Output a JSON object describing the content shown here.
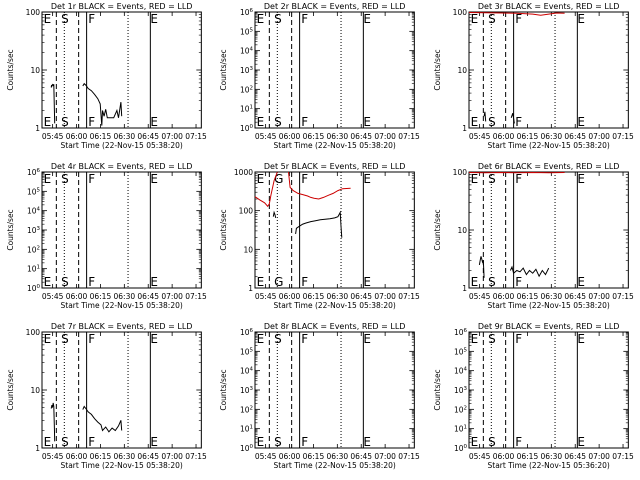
{
  "chart_data": [
    {
      "type": "line",
      "title": "Det 1r BLACK = Events, RED = LLD",
      "xlabel": "Start Time (22-Nov-15 05:38:20)",
      "ylabel": "Counts/sec",
      "yscale": "log",
      "ylim": [
        1,
        100
      ],
      "yticks": [
        "1",
        "10",
        "100"
      ],
      "xticks": [
        "05:45",
        "06:00",
        "06:15",
        "06:30",
        "06:45",
        "07:00",
        "07:15"
      ],
      "markers": [
        "E",
        "S",
        "F",
        "E"
      ],
      "series": [
        {
          "color": "#000000",
          "points": [
            [
              5.8,
              5
            ],
            [
              6.0,
              5.5
            ],
            [
              6.2,
              5.3
            ],
            [
              6.5,
              5.6
            ],
            [
              7.0,
              5.4
            ],
            [
              7.4,
              5.7
            ],
            [
              7.8,
              2
            ],
            [
              8.0,
              1.2
            ]
          ]
        },
        {
          "color": "#000000",
          "points": [
            [
              25.6,
              5.3
            ],
            [
              26.5,
              5.8
            ],
            [
              27.5,
              5.5
            ],
            [
              29.0,
              4.8
            ],
            [
              31.0,
              4.4
            ],
            [
              33.0,
              3.8
            ],
            [
              35.0,
              3.2
            ],
            [
              36.5,
              2.6
            ],
            [
              37.5,
              1.1
            ],
            [
              38.0,
              2.0
            ],
            [
              39.0,
              1.6
            ],
            [
              40.0,
              2.1
            ],
            [
              41.0,
              1.5
            ],
            [
              43.0,
              1.5
            ],
            [
              45.0,
              1.5
            ],
            [
              47.0,
              2.0
            ],
            [
              48.0,
              1.5
            ],
            [
              49.5,
              2.8
            ],
            [
              50.0,
              1.6
            ]
          ]
        }
      ]
    },
    {
      "type": "line",
      "title": "Det 2r BLACK = Events, RED = LLD",
      "xlabel": "Start Time (22-Nov-15 05:38:20)",
      "ylabel": "Counts/sec",
      "yscale": "log",
      "ylim": [
        1,
        1000000
      ],
      "yticks": [
        "10^0",
        "10^1",
        "10^2",
        "10^3",
        "10^4",
        "10^5",
        "10^6"
      ],
      "xticks": [
        "05:45",
        "06:00",
        "06:15",
        "06:30",
        "06:45",
        "07:00",
        "07:15"
      ],
      "markers": [
        "E",
        "S",
        "F",
        "E"
      ],
      "series": []
    },
    {
      "type": "line",
      "title": "Det 3r BLACK = Events, RED = LLD",
      "xlabel": "Start Time (22-Nov-15 05:38:20)",
      "ylabel": "Counts/sec",
      "yscale": "log",
      "ylim": [
        1,
        100
      ],
      "yticks": [
        "1",
        "10",
        "100"
      ],
      "xticks": [
        "05:45",
        "06:00",
        "06:15",
        "06:30",
        "06:45",
        "07:00",
        "07:15"
      ],
      "markers": [
        "E",
        "S",
        "F",
        "E"
      ],
      "series": [
        {
          "color": "#cc0000",
          "points": [
            [
              0,
              98
            ],
            [
              10,
              97
            ],
            [
              20,
              96
            ],
            [
              30,
              95
            ],
            [
              40,
              92
            ],
            [
              45,
              88
            ],
            [
              50,
              92
            ],
            [
              55,
              96
            ],
            [
              60,
              95
            ]
          ]
        },
        {
          "color": "#000000",
          "points": [
            [
              9.5,
              1.6
            ],
            [
              10.0,
              1.9
            ],
            [
              10.5,
              1.3
            ]
          ]
        },
        {
          "color": "#000000",
          "points": [
            [
              26.5,
              1.5
            ],
            [
              27.5,
              1.8
            ],
            [
              28.5,
              1.2
            ]
          ]
        }
      ]
    },
    {
      "type": "line",
      "title": "Det 4r BLACK = Events, RED = LLD",
      "xlabel": "Start Time (22-Nov-15 05:38:20)",
      "ylabel": "Counts/sec",
      "yscale": "log",
      "ylim": [
        1,
        1000000
      ],
      "yticks": [
        "10^0",
        "10^1",
        "10^2",
        "10^3",
        "10^4",
        "10^5",
        "10^6"
      ],
      "xticks": [
        "05:45",
        "06:00",
        "06:15",
        "06:30",
        "06:45",
        "07:00",
        "07:15"
      ],
      "markers": [
        "E",
        "S",
        "F",
        "E"
      ],
      "series": []
    },
    {
      "type": "line",
      "title": "Det 5r BLACK = Events, RED = LLD",
      "xlabel": "Start Time (22-Nov-15 05:38:20)",
      "ylabel": "Counts/sec",
      "yscale": "log",
      "ylim": [
        1,
        1000
      ],
      "yticks": [
        "1",
        "10",
        "100",
        "1000"
      ],
      "xticks": [
        "05:45",
        "06:00",
        "06:15",
        "06:30",
        "06:45",
        "07:00",
        "07:15"
      ],
      "markers": [
        "E",
        "G",
        "F",
        "E"
      ],
      "series": [
        {
          "color": "#cc0000",
          "points": [
            [
              0,
              230
            ],
            [
              3,
              190
            ],
            [
              6,
              160
            ],
            [
              8,
              130
            ],
            [
              9,
              150
            ],
            [
              10,
              250
            ],
            [
              12,
              600
            ],
            [
              14,
              1000
            ]
          ]
        },
        {
          "color": "#cc0000",
          "points": [
            [
              21,
              1000
            ],
            [
              22,
              400
            ],
            [
              24,
              330
            ],
            [
              27,
              280
            ],
            [
              30,
              260
            ],
            [
              33,
              240
            ],
            [
              35,
              220
            ],
            [
              37,
              210
            ],
            [
              40,
              200
            ],
            [
              43,
              220
            ],
            [
              46,
              250
            ],
            [
              49,
              280
            ],
            [
              52,
              330
            ],
            [
              55,
              370
            ],
            [
              60,
              380
            ]
          ]
        },
        {
          "color": "#000000",
          "points": [
            [
              11.5,
              70
            ],
            [
              12,
              90
            ],
            [
              12.5,
              80
            ],
            [
              13,
              65
            ]
          ]
        },
        {
          "color": "#000000",
          "points": [
            [
              25.5,
              25
            ],
            [
              26,
              35
            ],
            [
              28,
              40
            ],
            [
              30,
              45
            ],
            [
              32,
              48
            ],
            [
              35,
              52
            ],
            [
              38,
              55
            ],
            [
              41,
              58
            ],
            [
              44,
              60
            ],
            [
              47,
              62
            ],
            [
              50,
              65
            ],
            [
              52,
              70
            ],
            [
              53.5,
              90
            ],
            [
              54,
              40
            ],
            [
              54.5,
              20
            ]
          ]
        }
      ]
    },
    {
      "type": "line",
      "title": "Det 6r BLACK = Events, RED = LLD",
      "xlabel": "Start Time (22-Nov-15 05:38:20)",
      "ylabel": "Counts/sec",
      "yscale": "log",
      "ylim": [
        1,
        100
      ],
      "yticks": [
        "1",
        "10",
        "100"
      ],
      "xticks": [
        "05:45",
        "06:00",
        "06:15",
        "06:30",
        "06:45",
        "07:00",
        "07:15"
      ],
      "markers": [
        "E",
        "S",
        "F",
        "E"
      ],
      "series": [
        {
          "color": "#cc0000",
          "points": [
            [
              0,
              98
            ],
            [
              10,
              97
            ],
            [
              20,
              98
            ],
            [
              30,
              97
            ],
            [
              40,
              98
            ],
            [
              50,
              97
            ],
            [
              60,
              98
            ]
          ]
        },
        {
          "color": "#000000",
          "points": [
            [
              6.5,
              2.5
            ],
            [
              7,
              3
            ],
            [
              7.5,
              3.5
            ],
            [
              8,
              3.2
            ],
            [
              8.5,
              2.8
            ],
            [
              9,
              3.0
            ],
            [
              9.5,
              1.5
            ]
          ]
        },
        {
          "color": "#000000",
          "points": [
            [
              26,
              2.0
            ],
            [
              27,
              2.3
            ],
            [
              28,
              1.8
            ],
            [
              30,
              2.0
            ],
            [
              32,
              1.9
            ],
            [
              34,
              2.2
            ],
            [
              36,
              1.7
            ],
            [
              38,
              2.0
            ],
            [
              40,
              1.8
            ],
            [
              42,
              2.1
            ],
            [
              44,
              1.6
            ],
            [
              46,
              2.0
            ],
            [
              48,
              1.7
            ],
            [
              50,
              2.2
            ]
          ]
        }
      ]
    },
    {
      "type": "line",
      "title": "Det 7r BLACK = Events, RED = LLD",
      "xlabel": "Start Time (22-Nov-15 05:38:20)",
      "ylabel": "Counts/sec",
      "yscale": "log",
      "ylim": [
        1,
        100
      ],
      "yticks": [
        "1",
        "10",
        "100"
      ],
      "xticks": [
        "05:45",
        "06:00",
        "06:15",
        "06:30",
        "06:45",
        "07:00",
        "07:15"
      ],
      "markers": [
        "E",
        "S",
        "F",
        "E"
      ],
      "series": [
        {
          "color": "#000000",
          "points": [
            [
              5.8,
              4.8
            ],
            [
              6.2,
              5.5
            ],
            [
              6.6,
              5.0
            ],
            [
              7.0,
              6.0
            ],
            [
              7.4,
              5.2
            ],
            [
              7.8,
              2.2
            ],
            [
              8.0,
              1.3
            ]
          ]
        },
        {
          "color": "#000000",
          "points": [
            [
              25.6,
              4.6
            ],
            [
              26.5,
              5.2
            ],
            [
              27.5,
              4.8
            ],
            [
              29,
              4.2
            ],
            [
              31,
              3.8
            ],
            [
              33,
              3.2
            ],
            [
              35,
              2.8
            ],
            [
              37,
              2.5
            ],
            [
              38,
              2.0
            ],
            [
              40,
              2.3
            ],
            [
              42,
              1.9
            ],
            [
              44,
              2.2
            ],
            [
              46,
              2.0
            ],
            [
              48,
              2.4
            ],
            [
              49.5,
              3.0
            ],
            [
              50,
              2.0
            ]
          ]
        }
      ]
    },
    {
      "type": "line",
      "title": "Det 8r BLACK = Events, RED = LLD",
      "xlabel": "Start Time (22-Nov-15 05:38:20)",
      "ylabel": "Counts/sec",
      "yscale": "log",
      "ylim": [
        1,
        1000000
      ],
      "yticks": [
        "10^0",
        "10^1",
        "10^2",
        "10^3",
        "10^4",
        "10^5",
        "10^6"
      ],
      "xticks": [
        "05:45",
        "06:00",
        "06:15",
        "06:30",
        "06:45",
        "07:00",
        "07:15"
      ],
      "markers": [
        "E",
        "S",
        "F",
        "E"
      ],
      "series": []
    },
    {
      "type": "line",
      "title": "Det 9r BLACK = Events, RED = LLD",
      "xlabel": "Start Time (22-Nov-15 05:36:20)",
      "ylabel": "Counts/sec",
      "yscale": "log",
      "ylim": [
        1,
        1000000
      ],
      "yticks": [
        "10^0",
        "10^1",
        "10^2",
        "10^3",
        "10^4",
        "10^5",
        "10^6"
      ],
      "xticks": [
        "05:45",
        "06:00",
        "06:15",
        "06:30",
        "06:45",
        "07:00",
        "07:15"
      ],
      "markers": [
        "E",
        "S",
        "F",
        "E"
      ],
      "series": []
    }
  ]
}
